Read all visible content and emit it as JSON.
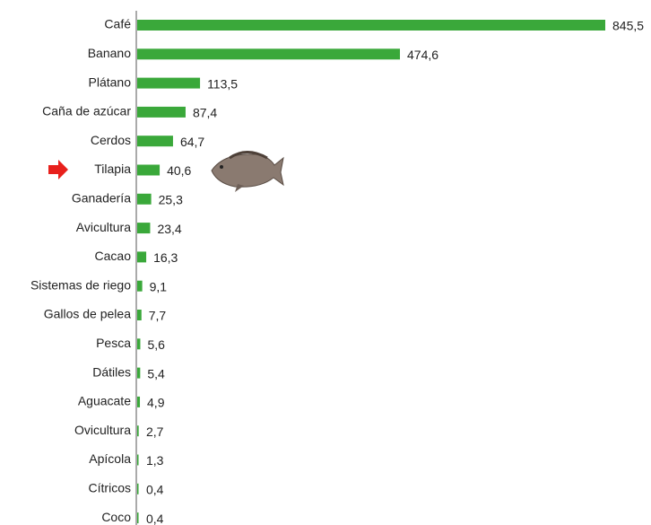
{
  "chart_data": {
    "type": "bar",
    "orientation": "horizontal",
    "color": "#3aa83a",
    "categories": [
      "Café",
      "Banano",
      "Plátano",
      "Caña de azúcar",
      "Cerdos",
      "Tilapia",
      "Ganadería",
      "Avicultura",
      "Cacao",
      "Sistemas de riego",
      "Gallos de pelea",
      "Pesca",
      "Dátiles",
      "Aguacate",
      "Ovicultura",
      "Apícola",
      "Cítricos",
      "Coco"
    ],
    "values": [
      845.5,
      474.6,
      113.5,
      87.4,
      64.7,
      40.6,
      25.3,
      23.4,
      16.3,
      9.1,
      7.7,
      5.6,
      5.4,
      4.9,
      2.7,
      1.3,
      0.4,
      0.4
    ],
    "value_labels": [
      "845,5",
      "474,6",
      "113,5",
      "87,4",
      "64,7",
      "40,6",
      "25,3",
      "23,4",
      "16,3",
      "9,1",
      "7,7",
      "5,6",
      "5,4",
      "4,9",
      "2,7",
      "1,3",
      "0,4",
      "0,4"
    ]
  }
}
